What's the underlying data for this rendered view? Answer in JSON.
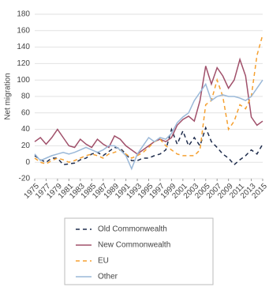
{
  "chart_data": {
    "type": "line",
    "y_label": "Net migration",
    "x": [
      1975,
      1976,
      1977,
      1978,
      1979,
      1980,
      1981,
      1982,
      1983,
      1984,
      1985,
      1986,
      1987,
      1988,
      1989,
      1990,
      1991,
      1992,
      1993,
      1994,
      1995,
      1996,
      1997,
      1998,
      1999,
      2000,
      2001,
      2002,
      2003,
      2004,
      2005,
      2006,
      2007,
      2008,
      2009,
      2010,
      2011,
      2012,
      2013,
      2014,
      2015
    ],
    "xlim": [
      1975,
      2015
    ],
    "xticks": [
      1975,
      1977,
      1979,
      1981,
      1983,
      1985,
      1987,
      1989,
      1991,
      1993,
      1995,
      1997,
      1999,
      2001,
      2003,
      2005,
      2007,
      2009,
      2011,
      2013,
      2015
    ],
    "ylim": [
      -20,
      180
    ],
    "yticks": [
      -20,
      0,
      20,
      40,
      60,
      80,
      100,
      120,
      140,
      160,
      180
    ],
    "grid": true,
    "legend": "bottom",
    "series": [
      {
        "name": "Old Commonwealth",
        "color": "#1f2d4d",
        "dashed": true,
        "values": [
          8,
          3,
          0,
          5,
          5,
          -3,
          -2,
          -1,
          3,
          5,
          10,
          12,
          8,
          13,
          18,
          17,
          10,
          2,
          2,
          5,
          5,
          8,
          10,
          15,
          40,
          22,
          38,
          20,
          30,
          20,
          42,
          25,
          18,
          10,
          5,
          -3,
          3,
          8,
          15,
          10,
          22
        ]
      },
      {
        "name": "New Commonwealth",
        "color": "#a0506a",
        "dashed": false,
        "values": [
          25,
          30,
          22,
          30,
          40,
          30,
          20,
          18,
          28,
          22,
          18,
          28,
          22,
          18,
          32,
          28,
          20,
          15,
          10,
          15,
          20,
          25,
          28,
          25,
          30,
          45,
          52,
          56,
          50,
          75,
          117,
          95,
          115,
          105,
          90,
          100,
          125,
          105,
          55,
          45,
          50
        ]
      },
      {
        "name": "EU",
        "color": "#f5a030",
        "dashed": true,
        "values": [
          5,
          0,
          -2,
          2,
          5,
          3,
          0,
          2,
          5,
          8,
          10,
          8,
          5,
          10,
          12,
          15,
          10,
          5,
          8,
          12,
          18,
          25,
          28,
          20,
          15,
          10,
          8,
          8,
          8,
          15,
          70,
          75,
          100,
          80,
          40,
          50,
          70,
          65,
          80,
          130,
          155
        ]
      },
      {
        "name": "Other",
        "color": "#9ab8d8",
        "dashed": false,
        "values": [
          10,
          2,
          5,
          8,
          10,
          12,
          10,
          12,
          15,
          18,
          15,
          12,
          15,
          20,
          20,
          15,
          8,
          -8,
          10,
          20,
          30,
          25,
          30,
          28,
          35,
          48,
          55,
          60,
          75,
          85,
          95,
          75,
          80,
          82,
          80,
          80,
          78,
          75,
          80,
          90,
          100
        ]
      }
    ]
  }
}
